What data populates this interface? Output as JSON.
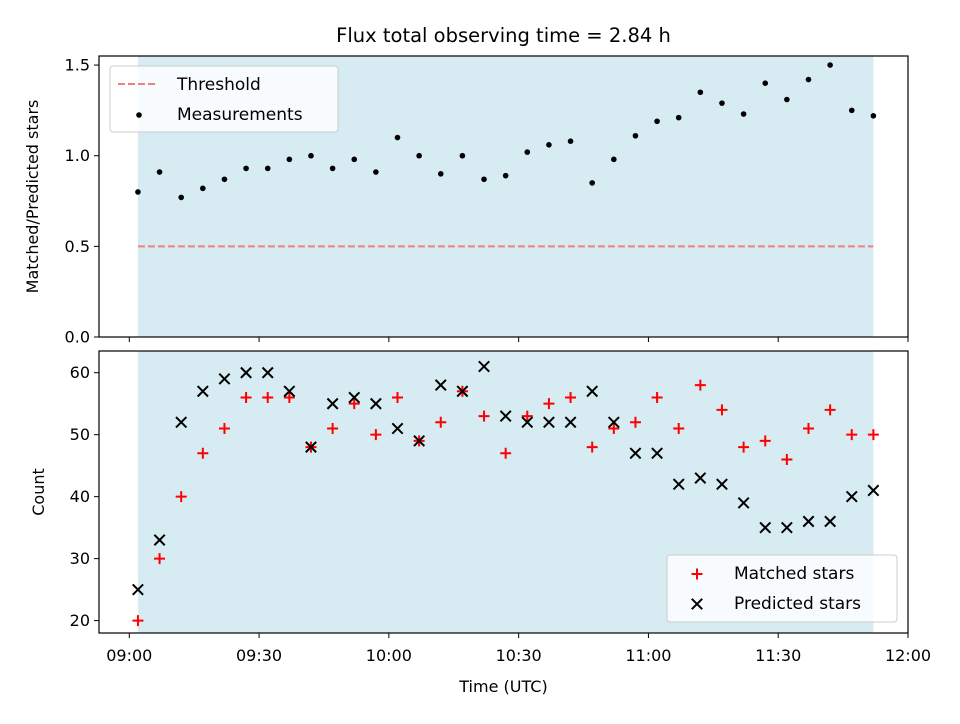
{
  "chart_data": [
    {
      "type": "scatter",
      "title": "Flux total observing time = 2.84 h",
      "xlabel": "",
      "ylabel": "Matched/Predicted stars",
      "xlim": [
        "08:53",
        "12:00"
      ],
      "ylim": [
        0,
        1.55
      ],
      "yticks": [
        0.0,
        0.5,
        1.0,
        1.5
      ],
      "ytick_labels": [
        "0.0",
        "0.5",
        "1.0",
        "1.5"
      ],
      "shaded_span": [
        "09:02",
        "11:52"
      ],
      "legend_position": "upper-left",
      "threshold": {
        "name": "Threshold",
        "value": 0.5,
        "color": "#f08080",
        "style": "dashed"
      },
      "series": [
        {
          "name": "Measurements",
          "marker": "dot",
          "color": "#000000",
          "x": [
            "09:02",
            "09:07",
            "09:12",
            "09:17",
            "09:22",
            "09:27",
            "09:32",
            "09:37",
            "09:42",
            "09:47",
            "09:52",
            "09:57",
            "10:02",
            "10:07",
            "10:12",
            "10:17",
            "10:22",
            "10:27",
            "10:32",
            "10:37",
            "10:42",
            "10:47",
            "10:52",
            "10:57",
            "11:02",
            "11:07",
            "11:12",
            "11:17",
            "11:22",
            "11:27",
            "11:32",
            "11:37",
            "11:42",
            "11:47",
            "11:52"
          ],
          "y": [
            0.8,
            0.91,
            0.77,
            0.82,
            0.87,
            0.93,
            0.93,
            0.98,
            1.0,
            0.93,
            0.98,
            0.91,
            1.1,
            1.0,
            0.9,
            1.0,
            0.87,
            0.89,
            1.02,
            1.06,
            1.08,
            0.85,
            0.98,
            1.11,
            1.19,
            1.21,
            1.35,
            1.29,
            1.23,
            1.4,
            1.31,
            1.42,
            1.5,
            1.25,
            1.22
          ]
        }
      ]
    },
    {
      "type": "scatter",
      "title": "",
      "xlabel": "Time (UTC)",
      "ylabel": "Count",
      "xlim": [
        "08:53",
        "12:00"
      ],
      "ylim": [
        18,
        63.5
      ],
      "xticks": [
        "09:00",
        "09:30",
        "10:00",
        "10:30",
        "11:00",
        "11:30",
        "12:00"
      ],
      "yticks": [
        20,
        30,
        40,
        50,
        60
      ],
      "shaded_span": [
        "09:02",
        "11:52"
      ],
      "legend_position": "lower-right",
      "series": [
        {
          "name": "Matched stars",
          "marker": "plus",
          "color": "#ff0000",
          "x": [
            "09:02",
            "09:07",
            "09:12",
            "09:17",
            "09:22",
            "09:27",
            "09:32",
            "09:37",
            "09:42",
            "09:47",
            "09:52",
            "09:57",
            "10:02",
            "10:07",
            "10:12",
            "10:17",
            "10:22",
            "10:27",
            "10:32",
            "10:37",
            "10:42",
            "10:47",
            "10:52",
            "10:57",
            "11:02",
            "11:07",
            "11:12",
            "11:17",
            "11:22",
            "11:27",
            "11:32",
            "11:37",
            "11:42",
            "11:47",
            "11:52"
          ],
          "y": [
            20,
            30,
            40,
            47,
            51,
            56,
            56,
            56,
            48,
            51,
            55,
            50,
            56,
            49,
            52,
            57,
            53,
            47,
            53,
            55,
            56,
            48,
            51,
            52,
            56,
            51,
            58,
            54,
            48,
            49,
            46,
            51,
            54,
            50,
            50
          ]
        },
        {
          "name": "Predicted stars",
          "marker": "x",
          "color": "#000000",
          "x": [
            "09:02",
            "09:07",
            "09:12",
            "09:17",
            "09:22",
            "09:27",
            "09:32",
            "09:37",
            "09:42",
            "09:47",
            "09:52",
            "09:57",
            "10:02",
            "10:07",
            "10:12",
            "10:17",
            "10:22",
            "10:27",
            "10:32",
            "10:37",
            "10:42",
            "10:47",
            "10:52",
            "10:57",
            "11:02",
            "11:07",
            "11:12",
            "11:17",
            "11:22",
            "11:27",
            "11:32",
            "11:37",
            "11:42",
            "11:47",
            "11:52"
          ],
          "y": [
            25,
            33,
            52,
            57,
            59,
            60,
            60,
            57,
            48,
            55,
            56,
            55,
            51,
            49,
            58,
            57,
            61,
            53,
            52,
            52,
            52,
            57,
            52,
            47,
            47,
            42,
            43,
            42,
            39,
            35,
            35,
            36,
            36,
            40,
            41
          ]
        }
      ]
    }
  ],
  "colors": {
    "span_fill": "#add8e6",
    "threshold": "#f08080",
    "matched": "#ff0000",
    "predicted": "#000000"
  }
}
